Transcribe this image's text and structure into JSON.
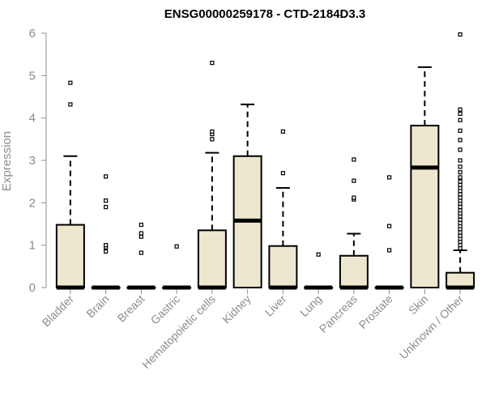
{
  "chart_data": {
    "type": "boxplot",
    "title": "ENSG00000259178 - CTD-2184D3.3",
    "xlabel": "",
    "ylabel": "Expression",
    "ylim": [
      0,
      6
    ],
    "yticks": [
      0,
      1,
      2,
      3,
      4,
      5,
      6
    ],
    "grid": false,
    "legend": "none",
    "box_fill": "#ede7cf",
    "box_stroke": "#000000",
    "axis_color": "#8c8c8c",
    "categories": [
      "Bladder",
      "Brain",
      "Breast",
      "Gastric",
      "Hematopoietic cells",
      "Kidney",
      "Liver",
      "Lung",
      "Pancreas",
      "Prostate",
      "Skin",
      "Unknown / Other"
    ],
    "boxes": [
      {
        "category": "Bladder",
        "whisker_low": 0,
        "q1": 0,
        "median": 0,
        "q3": 1.48,
        "whisker_high": 3.1,
        "outliers": [
          4.32,
          4.83
        ]
      },
      {
        "category": "Brain",
        "whisker_low": 0,
        "q1": 0,
        "median": 0,
        "q3": 0,
        "whisker_high": 0,
        "outliers": [
          0.85,
          0.95,
          1.0,
          1.9,
          2.05,
          2.62
        ]
      },
      {
        "category": "Breast",
        "whisker_low": 0,
        "q1": 0,
        "median": 0,
        "q3": 0,
        "whisker_high": 0,
        "outliers": [
          0.82,
          1.2,
          1.28,
          1.48
        ]
      },
      {
        "category": "Gastric",
        "whisker_low": 0,
        "q1": 0,
        "median": 0,
        "q3": 0,
        "whisker_high": 0,
        "outliers": [
          0.97
        ]
      },
      {
        "category": "Hematopoietic cells",
        "whisker_low": 0,
        "q1": 0,
        "median": 0,
        "q3": 1.35,
        "whisker_high": 3.18,
        "outliers": [
          3.5,
          3.62,
          3.68,
          5.3
        ]
      },
      {
        "category": "Kidney",
        "whisker_low": 0,
        "q1": 0,
        "median": 1.58,
        "q3": 3.1,
        "whisker_high": 4.32,
        "outliers": []
      },
      {
        "category": "Liver",
        "whisker_low": 0,
        "q1": 0,
        "median": 0,
        "q3": 0.98,
        "whisker_high": 2.35,
        "outliers": [
          2.7,
          3.68
        ]
      },
      {
        "category": "Lung",
        "whisker_low": 0,
        "q1": 0,
        "median": 0,
        "q3": 0,
        "whisker_high": 0,
        "outliers": [
          0.78
        ]
      },
      {
        "category": "Pancreas",
        "whisker_low": 0,
        "q1": 0,
        "median": 0,
        "q3": 0.75,
        "whisker_high": 1.27,
        "outliers": [
          2.08,
          2.12,
          2.52,
          3.02
        ]
      },
      {
        "category": "Prostate",
        "whisker_low": 0,
        "q1": 0,
        "median": 0,
        "q3": 0,
        "whisker_high": 0,
        "outliers": [
          0.88,
          1.45,
          2.6
        ]
      },
      {
        "category": "Skin",
        "whisker_low": 0,
        "q1": 0,
        "median": 2.83,
        "q3": 3.82,
        "whisker_high": 5.2,
        "outliers": []
      },
      {
        "category": "Unknown / Other",
        "whisker_low": 0,
        "q1": 0,
        "median": 0,
        "q3": 0.35,
        "whisker_high": 0.88,
        "outliers": [
          0.93,
          1.0,
          1.08,
          1.15,
          1.22,
          1.3,
          1.38,
          1.45,
          1.52,
          1.6,
          1.68,
          1.75,
          1.82,
          1.9,
          1.98,
          2.05,
          2.12,
          2.2,
          2.28,
          2.35,
          2.42,
          2.5,
          2.6,
          2.72,
          2.85,
          3.0,
          3.25,
          3.48,
          3.7,
          3.95,
          4.1,
          4.2,
          5.97
        ]
      }
    ]
  }
}
